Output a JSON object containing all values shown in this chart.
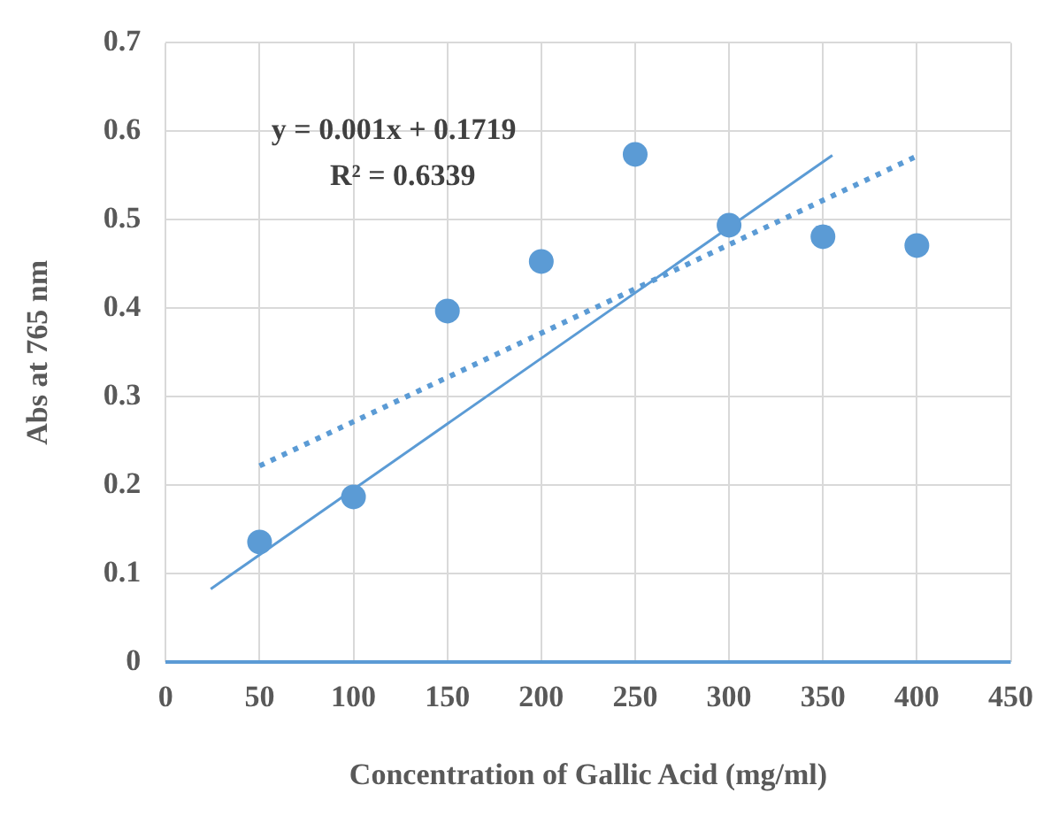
{
  "chart_data": {
    "type": "scatter",
    "xlabel": "Concentration of Gallic Acid (mg/ml)",
    "ylabel": "Abs at 765 nm",
    "x": [
      50,
      100,
      150,
      200,
      250,
      300,
      350,
      400
    ],
    "series": [
      {
        "type": "scatter",
        "color": "#5b9bd5",
        "marker": "circle",
        "values": [
          0.136,
          0.187,
          0.397,
          0.453,
          0.574,
          0.494,
          0.481,
          0.471
        ]
      },
      {
        "type": "line",
        "color": "#5b9bd5",
        "marker": "none",
        "line_style": "dotted",
        "x": [
          50,
          400
        ],
        "values": [
          0.222,
          0.572
        ]
      },
      {
        "type": "line",
        "color": "#5b9bd5",
        "marker": "none",
        "line_style": "solid",
        "x": [
          24,
          355
        ],
        "values": [
          0.083,
          0.573
        ]
      }
    ],
    "annotations": [
      "y = 0.001x + 0.1719",
      "R² = 0.6339"
    ],
    "xlim": [
      0,
      450
    ],
    "xticks": [
      0,
      50,
      100,
      150,
      200,
      250,
      300,
      350,
      400,
      450
    ],
    "ylim": [
      0,
      0.7
    ],
    "yticks": [
      0,
      0.1,
      0.2,
      0.3,
      0.4,
      0.5,
      0.6,
      0.7
    ],
    "grid": true,
    "legend": false
  }
}
